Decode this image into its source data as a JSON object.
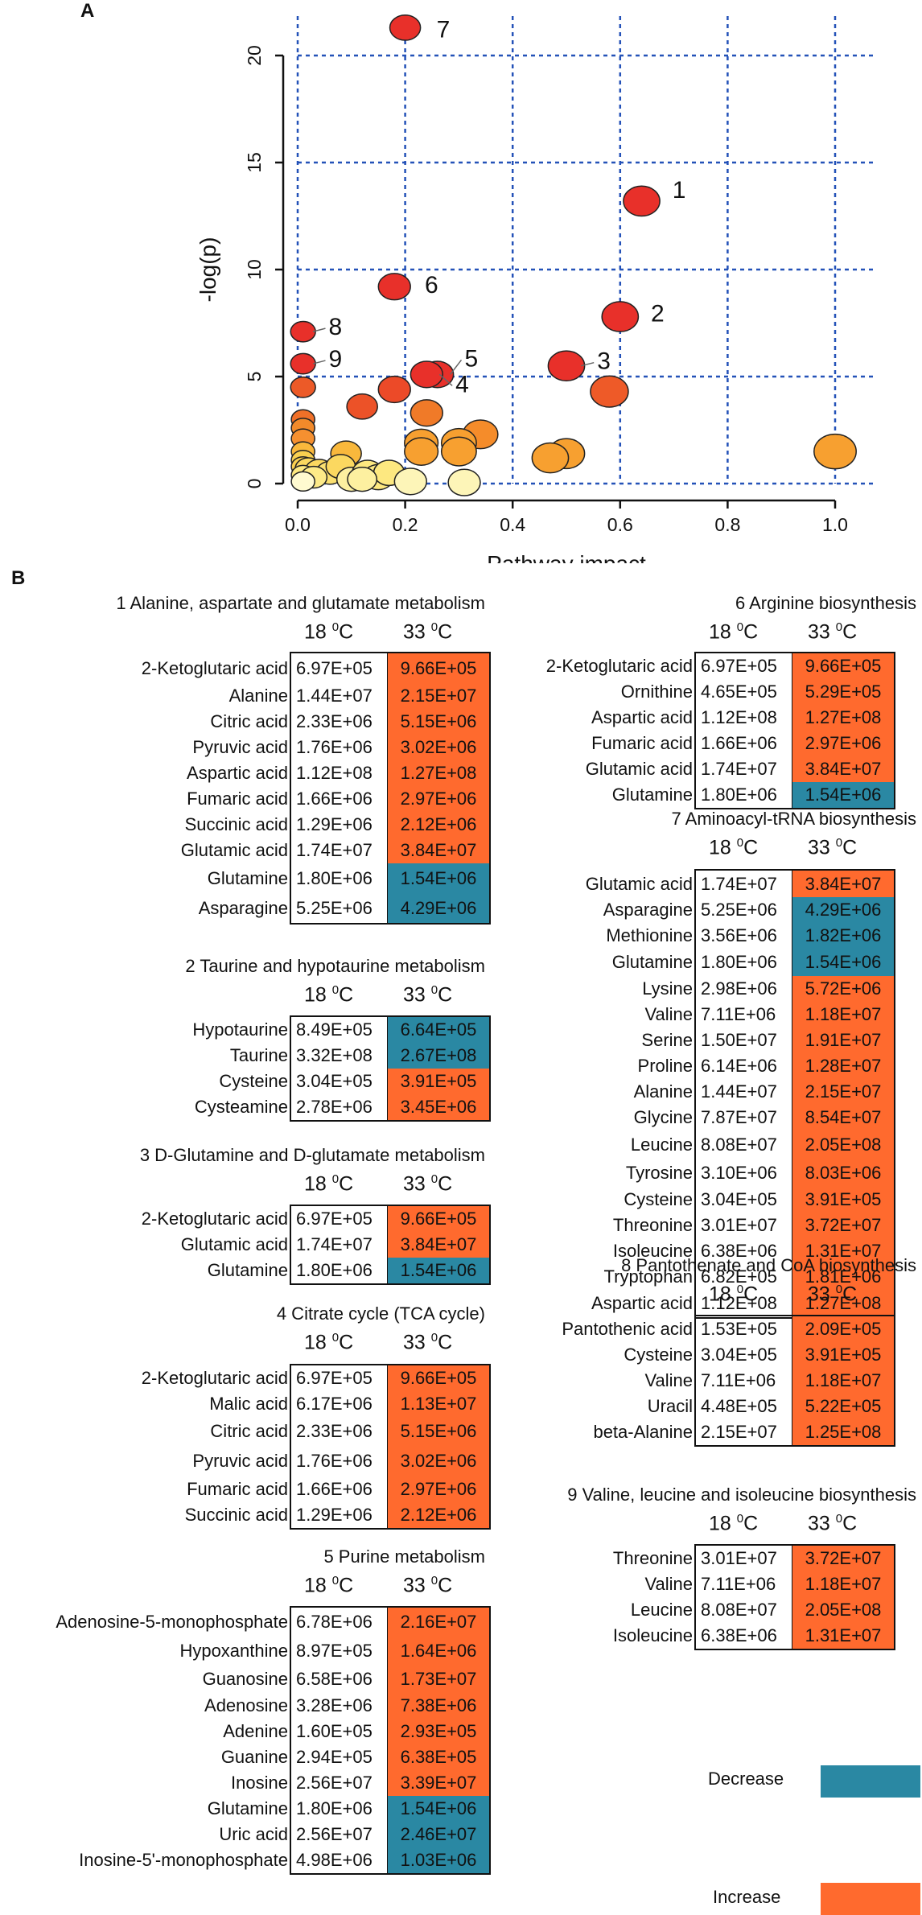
{
  "panels": {
    "a": "A",
    "b": "B"
  },
  "chart_data": {
    "type": "scatter",
    "xlabel": "Pathway impact",
    "ylabel": "-log(p)",
    "xlim": [
      0,
      1.0
    ],
    "ylim": [
      0,
      21
    ],
    "xticks": [
      "0.0",
      "0.2",
      "0.4",
      "0.6",
      "0.8",
      "1.0"
    ],
    "yticks": [
      "0",
      "5",
      "10",
      "15",
      "20"
    ],
    "grid": true,
    "points": [
      {
        "label": "7",
        "x": 0.2,
        "y": 21.3,
        "color": "#e8302a",
        "size": 1.0
      },
      {
        "label": "1",
        "x": 0.64,
        "y": 13.2,
        "color": "#e8302a",
        "size": 1.4
      },
      {
        "label": "6",
        "x": 0.18,
        "y": 9.2,
        "color": "#e8302a",
        "size": 1.1
      },
      {
        "label": "2",
        "x": 0.6,
        "y": 7.8,
        "color": "#e8302a",
        "size": 1.4
      },
      {
        "label": "8",
        "x": 0.01,
        "y": 7.1,
        "color": "#e8302a",
        "size": 0.6
      },
      {
        "label": "9",
        "x": 0.01,
        "y": 5.6,
        "color": "#e8302a",
        "size": 0.6
      },
      {
        "label": "3",
        "x": 0.5,
        "y": 5.5,
        "color": "#e8302a",
        "size": 1.4
      },
      {
        "label": "5",
        "x": 0.26,
        "y": 5.1,
        "color": "#e8302a",
        "size": 1.1
      },
      {
        "label": "4",
        "x": 0.24,
        "y": 5.1,
        "color": "#e8302a",
        "size": 1.1
      },
      {
        "label": "",
        "x": 0.01,
        "y": 4.5,
        "color": "#ec5a28",
        "size": 0.6
      },
      {
        "label": "",
        "x": 0.18,
        "y": 4.4,
        "color": "#ec4a28",
        "size": 1.1
      },
      {
        "label": "",
        "x": 0.58,
        "y": 4.3,
        "color": "#ee5a28",
        "size": 1.5
      },
      {
        "label": "",
        "x": 0.12,
        "y": 3.6,
        "color": "#ec5228",
        "size": 1.0
      },
      {
        "label": "",
        "x": 0.24,
        "y": 3.3,
        "color": "#f07a28",
        "size": 1.1
      },
      {
        "label": "",
        "x": 0.01,
        "y": 3.0,
        "color": "#f07028",
        "size": 0.5
      },
      {
        "label": "",
        "x": 0.01,
        "y": 2.6,
        "color": "#f28a2a",
        "size": 0.5
      },
      {
        "label": "",
        "x": 0.34,
        "y": 2.3,
        "color": "#f58c2a",
        "size": 1.3
      },
      {
        "label": "",
        "x": 0.01,
        "y": 2.1,
        "color": "#f59030",
        "size": 0.5
      },
      {
        "label": "",
        "x": 0.23,
        "y": 1.9,
        "color": "#f7a030",
        "size": 1.2
      },
      {
        "label": "",
        "x": 0.3,
        "y": 1.9,
        "color": "#f7a030",
        "size": 1.3
      },
      {
        "label": "",
        "x": 0.3,
        "y": 1.5,
        "color": "#f7a030",
        "size": 1.3
      },
      {
        "label": "",
        "x": 0.23,
        "y": 1.5,
        "color": "#f7a030",
        "size": 1.2
      },
      {
        "label": "",
        "x": 0.5,
        "y": 1.4,
        "color": "#f7a030",
        "size": 1.4
      },
      {
        "label": "",
        "x": 0.47,
        "y": 1.2,
        "color": "#f7a030",
        "size": 1.4
      },
      {
        "label": "",
        "x": 1.0,
        "y": 1.5,
        "color": "#f7a030",
        "size": 1.8
      },
      {
        "label": "",
        "x": 0.09,
        "y": 1.4,
        "color": "#f9b83c",
        "size": 1.0
      },
      {
        "label": "",
        "x": 0.01,
        "y": 1.5,
        "color": "#f9b83c",
        "size": 0.5
      },
      {
        "label": "",
        "x": 0.01,
        "y": 1.1,
        "color": "#fad050",
        "size": 0.5
      },
      {
        "label": "",
        "x": 0.01,
        "y": 0.8,
        "color": "#fad050",
        "size": 0.5
      },
      {
        "label": "",
        "x": 0.02,
        "y": 0.7,
        "color": "#fbd860",
        "size": 0.7
      },
      {
        "label": "",
        "x": 0.04,
        "y": 0.6,
        "color": "#fbd860",
        "size": 0.8
      },
      {
        "label": "",
        "x": 0.06,
        "y": 0.5,
        "color": "#fbe070",
        "size": 0.8
      },
      {
        "label": "",
        "x": 0.08,
        "y": 0.8,
        "color": "#fbd860",
        "size": 0.9
      },
      {
        "label": "",
        "x": 0.01,
        "y": 0.4,
        "color": "#fde880",
        "size": 0.5
      },
      {
        "label": "",
        "x": 0.03,
        "y": 0.3,
        "color": "#fdea88",
        "size": 0.7
      },
      {
        "label": "",
        "x": 0.1,
        "y": 0.2,
        "color": "#fdf0a0",
        "size": 0.9
      },
      {
        "label": "",
        "x": 0.13,
        "y": 0.5,
        "color": "#fde880",
        "size": 1.0
      },
      {
        "label": "",
        "x": 0.15,
        "y": 0.3,
        "color": "#fde880",
        "size": 1.0
      },
      {
        "label": "",
        "x": 0.17,
        "y": 0.5,
        "color": "#fde880",
        "size": 1.0
      },
      {
        "label": "",
        "x": 0.12,
        "y": 0.2,
        "color": "#fdf0a0",
        "size": 0.9
      },
      {
        "label": "",
        "x": 0.21,
        "y": 0.1,
        "color": "#fdf5b8",
        "size": 1.1
      },
      {
        "label": "",
        "x": 0.31,
        "y": 0.05,
        "color": "#fdf5b8",
        "size": 1.1
      },
      {
        "label": "",
        "x": 0.01,
        "y": 0.1,
        "color": "#fffad0",
        "size": 0.5
      }
    ]
  },
  "temps": {
    "t18": "18",
    "t33": "33",
    "unit": "C",
    "deg": "0"
  },
  "groups": [
    {
      "title": "1 Alanine, aspartate and glutamate metabolism",
      "rows": [
        {
          "name": "2-Ketoglutaric acid",
          "v18": "6.97E+05",
          "v33": "9.66E+05",
          "dir": "inc"
        },
        {
          "name": "Alanine",
          "v18": "1.44E+07",
          "v33": "2.15E+07",
          "dir": "inc"
        },
        {
          "name": "Citric acid",
          "v18": "2.33E+06",
          "v33": "5.15E+06",
          "dir": "inc"
        },
        {
          "name": "Pyruvic acid",
          "v18": "1.76E+06",
          "v33": "3.02E+06",
          "dir": "inc"
        },
        {
          "name": "Aspartic acid",
          "v18": "1.12E+08",
          "v33": "1.27E+08",
          "dir": "inc"
        },
        {
          "name": "Fumaric acid",
          "v18": "1.66E+06",
          "v33": "2.97E+06",
          "dir": "inc"
        },
        {
          "name": "Succinic acid",
          "v18": "1.29E+06",
          "v33": "2.12E+06",
          "dir": "inc"
        },
        {
          "name": "Glutamic acid",
          "v18": "1.74E+07",
          "v33": "3.84E+07",
          "dir": "inc"
        },
        {
          "name": "Glutamine",
          "v18": "1.80E+06",
          "v33": "1.54E+06",
          "dir": "dec"
        },
        {
          "name": "Asparagine",
          "v18": "5.25E+06",
          "v33": "4.29E+06",
          "dir": "dec"
        }
      ]
    },
    {
      "title": "2 Taurine and hypotaurine metabolism",
      "rows": [
        {
          "name": "Hypotaurine",
          "v18": "8.49E+05",
          "v33": "6.64E+05",
          "dir": "dec"
        },
        {
          "name": "Taurine",
          "v18": "3.32E+08",
          "v33": "2.67E+08",
          "dir": "dec"
        },
        {
          "name": "Cysteine",
          "v18": "3.04E+05",
          "v33": "3.91E+05",
          "dir": "inc"
        },
        {
          "name": "Cysteamine",
          "v18": "2.78E+06",
          "v33": "3.45E+06",
          "dir": "inc"
        }
      ]
    },
    {
      "title": "3 D-Glutamine and D-glutamate metabolism",
      "rows": [
        {
          "name": "2-Ketoglutaric acid",
          "v18": "6.97E+05",
          "v33": "9.66E+05",
          "dir": "inc"
        },
        {
          "name": "Glutamic acid",
          "v18": "1.74E+07",
          "v33": "3.84E+07",
          "dir": "inc"
        },
        {
          "name": "Glutamine",
          "v18": "1.80E+06",
          "v33": "1.54E+06",
          "dir": "dec"
        }
      ]
    },
    {
      "title": "4 Citrate cycle (TCA cycle)",
      "rows": [
        {
          "name": "2-Ketoglutaric acid",
          "v18": "6.97E+05",
          "v33": "9.66E+05",
          "dir": "inc"
        },
        {
          "name": "Malic acid",
          "v18": "6.17E+06",
          "v33": "1.13E+07",
          "dir": "inc"
        },
        {
          "name": "Citric acid",
          "v18": "2.33E+06",
          "v33": "5.15E+06",
          "dir": "inc"
        },
        {
          "name": "Pyruvic acid",
          "v18": "1.76E+06",
          "v33": "3.02E+06",
          "dir": "inc"
        },
        {
          "name": "Fumaric acid",
          "v18": "1.66E+06",
          "v33": "2.97E+06",
          "dir": "inc"
        },
        {
          "name": "Succinic acid",
          "v18": "1.29E+06",
          "v33": "2.12E+06",
          "dir": "inc"
        }
      ]
    },
    {
      "title": "5 Purine metabolism",
      "rows": [
        {
          "name": "Adenosine-5-monophosphate",
          "v18": "6.78E+06",
          "v33": "2.16E+07",
          "dir": "inc"
        },
        {
          "name": "Hypoxanthine",
          "v18": "8.97E+05",
          "v33": "1.64E+06",
          "dir": "inc"
        },
        {
          "name": "Guanosine",
          "v18": "6.58E+06",
          "v33": "1.73E+07",
          "dir": "inc"
        },
        {
          "name": "Adenosine",
          "v18": "3.28E+06",
          "v33": "7.38E+06",
          "dir": "inc"
        },
        {
          "name": "Adenine",
          "v18": "1.60E+05",
          "v33": "2.93E+05",
          "dir": "inc"
        },
        {
          "name": "Guanine",
          "v18": "2.94E+05",
          "v33": "6.38E+05",
          "dir": "inc"
        },
        {
          "name": "Inosine",
          "v18": "2.56E+07",
          "v33": "3.39E+07",
          "dir": "inc"
        },
        {
          "name": "Glutamine",
          "v18": "1.80E+06",
          "v33": "1.54E+06",
          "dir": "dec"
        },
        {
          "name": "Uric acid",
          "v18": "2.56E+07",
          "v33": "2.46E+07",
          "dir": "dec"
        },
        {
          "name": "Inosine-5'-monophosphate",
          "v18": "4.98E+06",
          "v33": "1.03E+06",
          "dir": "dec"
        }
      ]
    },
    {
      "title": "6 Arginine biosynthesis",
      "rows": [
        {
          "name": "2-Ketoglutaric acid",
          "v18": "6.97E+05",
          "v33": "9.66E+05",
          "dir": "inc"
        },
        {
          "name": "Ornithine",
          "v18": "4.65E+05",
          "v33": "5.29E+05",
          "dir": "inc"
        },
        {
          "name": "Aspartic acid",
          "v18": "1.12E+08",
          "v33": "1.27E+08",
          "dir": "inc"
        },
        {
          "name": "Fumaric acid",
          "v18": "1.66E+06",
          "v33": "2.97E+06",
          "dir": "inc"
        },
        {
          "name": "Glutamic acid",
          "v18": "1.74E+07",
          "v33": "3.84E+07",
          "dir": "inc"
        },
        {
          "name": "Glutamine",
          "v18": "1.80E+06",
          "v33": "1.54E+06",
          "dir": "dec"
        }
      ]
    },
    {
      "title": "7 Aminoacyl-tRNA biosynthesis",
      "rows": [
        {
          "name": "Glutamic acid",
          "v18": "1.74E+07",
          "v33": "3.84E+07",
          "dir": "inc"
        },
        {
          "name": "Asparagine",
          "v18": "5.25E+06",
          "v33": "4.29E+06",
          "dir": "dec"
        },
        {
          "name": "Methionine",
          "v18": "3.56E+06",
          "v33": "1.82E+06",
          "dir": "dec"
        },
        {
          "name": "Glutamine",
          "v18": "1.80E+06",
          "v33": "1.54E+06",
          "dir": "dec"
        },
        {
          "name": "Lysine",
          "v18": "2.98E+06",
          "v33": "5.72E+06",
          "dir": "inc"
        },
        {
          "name": "Valine",
          "v18": "7.11E+06",
          "v33": "1.18E+07",
          "dir": "inc"
        },
        {
          "name": "Serine",
          "v18": "1.50E+07",
          "v33": "1.91E+07",
          "dir": "inc"
        },
        {
          "name": "Proline",
          "v18": "6.14E+06",
          "v33": "1.28E+07",
          "dir": "inc"
        },
        {
          "name": "Alanine",
          "v18": "1.44E+07",
          "v33": "2.15E+07",
          "dir": "inc"
        },
        {
          "name": "Glycine",
          "v18": "7.87E+07",
          "v33": "8.54E+07",
          "dir": "inc"
        },
        {
          "name": "Leucine",
          "v18": "8.08E+07",
          "v33": "2.05E+08",
          "dir": "inc"
        },
        {
          "name": "Tyrosine",
          "v18": "3.10E+06",
          "v33": "8.03E+06",
          "dir": "inc"
        },
        {
          "name": "Cysteine",
          "v18": "3.04E+05",
          "v33": "3.91E+05",
          "dir": "inc"
        },
        {
          "name": "Threonine",
          "v18": "3.01E+07",
          "v33": "3.72E+07",
          "dir": "inc"
        },
        {
          "name": "Isoleucine",
          "v18": "6.38E+06",
          "v33": "1.31E+07",
          "dir": "inc"
        },
        {
          "name": "Tryptophan",
          "v18": "6.82E+05",
          "v33": "1.81E+06",
          "dir": "inc"
        },
        {
          "name": "Aspartic acid",
          "v18": "1.12E+08",
          "v33": "1.27E+08",
          "dir": "inc"
        }
      ]
    },
    {
      "title": "8 Pantothenate and CoA biosynthesis",
      "rows": [
        {
          "name": "Pantothenic acid",
          "v18": "1.53E+05",
          "v33": "2.09E+05",
          "dir": "inc"
        },
        {
          "name": "Cysteine",
          "v18": "3.04E+05",
          "v33": "3.91E+05",
          "dir": "inc"
        },
        {
          "name": "Valine",
          "v18": "7.11E+06",
          "v33": "1.18E+07",
          "dir": "inc"
        },
        {
          "name": "Uracil",
          "v18": "4.48E+05",
          "v33": "5.22E+05",
          "dir": "inc"
        },
        {
          "name": "beta-Alanine",
          "v18": "2.15E+07",
          "v33": "1.25E+08",
          "dir": "inc"
        }
      ]
    },
    {
      "title": "9 Valine, leucine and isoleucine biosynthesis",
      "rows": [
        {
          "name": "Threonine",
          "v18": "3.01E+07",
          "v33": "3.72E+07",
          "dir": "inc"
        },
        {
          "name": "Valine",
          "v18": "7.11E+06",
          "v33": "1.18E+07",
          "dir": "inc"
        },
        {
          "name": "Leucine",
          "v18": "8.08E+07",
          "v33": "2.05E+08",
          "dir": "inc"
        },
        {
          "name": "Isoleucine",
          "v18": "6.38E+06",
          "v33": "1.31E+07",
          "dir": "inc"
        }
      ]
    }
  ],
  "legend": {
    "decrease": "Decrease",
    "increase": "Increase",
    "decrease_color": "#2a88a3",
    "increase_color": "#ff6a2e"
  }
}
